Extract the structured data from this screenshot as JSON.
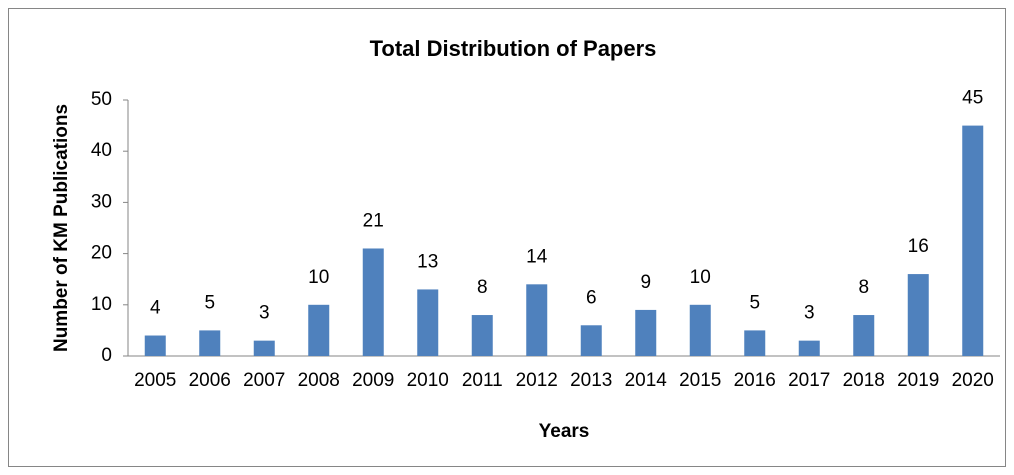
{
  "chart_data": {
    "type": "bar",
    "title": "Total Distribution of Papers",
    "x_label": "Years",
    "y_label": "Number of KM Publications",
    "categories": [
      "2005",
      "2006",
      "2007",
      "2008",
      "2009",
      "2010",
      "2011",
      "2012",
      "2013",
      "2014",
      "2015",
      "2016",
      "2017",
      "2018",
      "2019",
      "2020"
    ],
    "values": [
      4,
      5,
      3,
      10,
      21,
      13,
      8,
      14,
      6,
      9,
      10,
      5,
      3,
      8,
      16,
      45
    ],
    "color": "#4f81bd",
    "ylim": [
      0,
      50
    ],
    "yticks": [
      0,
      10,
      20,
      30,
      40,
      50
    ],
    "grid": false
  }
}
